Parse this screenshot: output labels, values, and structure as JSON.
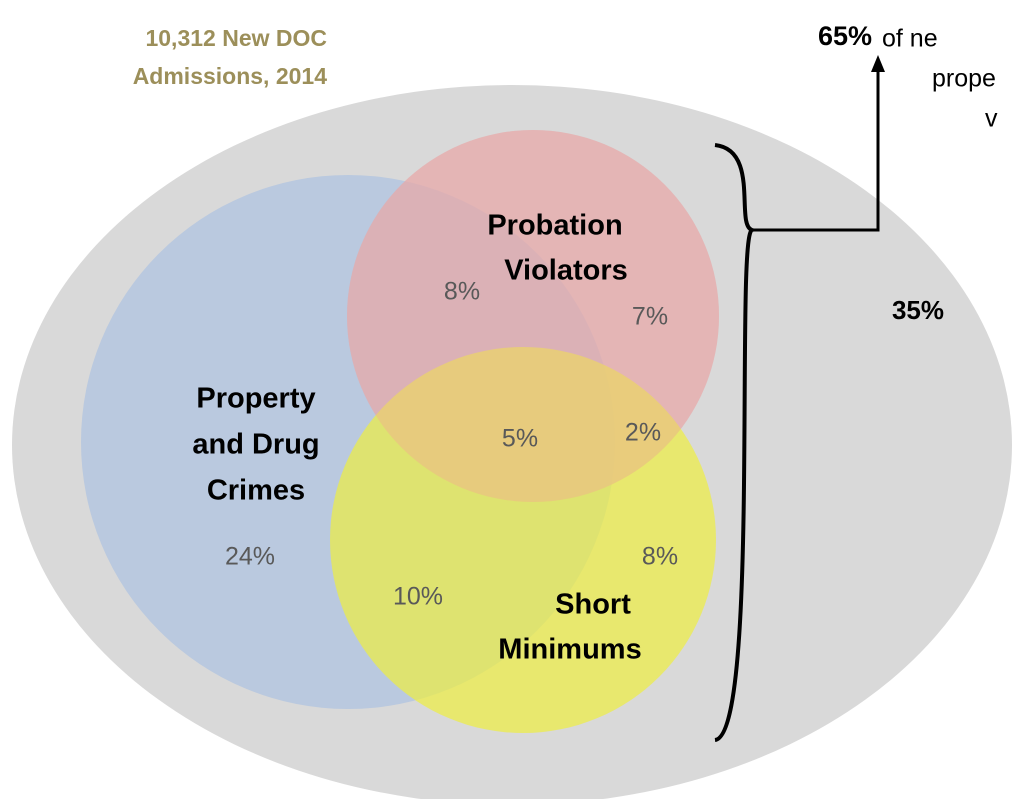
{
  "title": {
    "lines": [
      "10,312 New DOC",
      "Admissions, 2014"
    ]
  },
  "sets": [
    {
      "label": [
        "Property",
        "and Drug",
        "Crimes"
      ]
    },
    {
      "label": [
        "Probation",
        "Violators"
      ]
    },
    {
      "label": [
        "Short",
        "Minimums"
      ]
    }
  ],
  "regions": {
    "property_only": "24%",
    "property_probation": "8%",
    "probation_only": "7%",
    "all_three": "5%",
    "probation_short": "2%",
    "property_short": "10%",
    "short_only": "8%",
    "outside": "35%"
  },
  "annotation": {
    "highlight": "65%",
    "lines": [
      "of ne",
      "prope",
      "v"
    ]
  }
}
